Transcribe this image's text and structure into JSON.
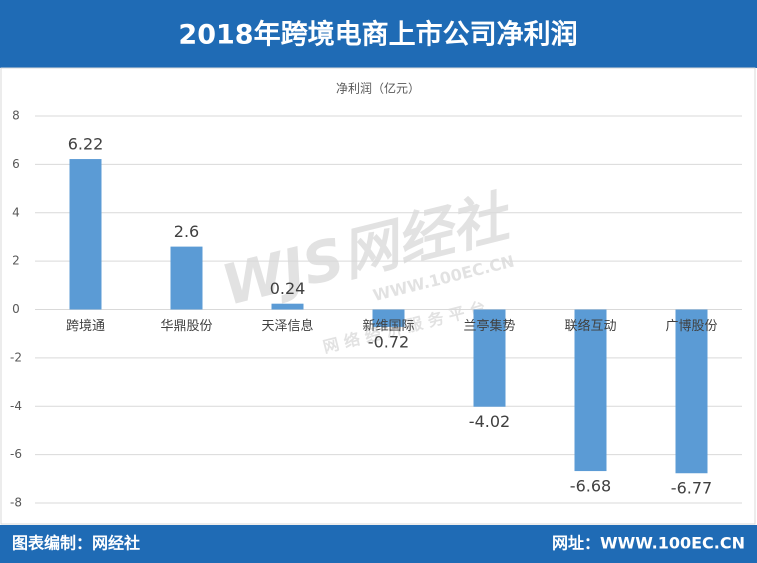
{
  "header": {
    "title": "2018年跨境电商上市公司净利润"
  },
  "chart_data": {
    "type": "bar",
    "title": "净利润（亿元）",
    "categories": [
      "跨境通",
      "华鼎股份",
      "天泽信息",
      "新维国际",
      "兰亭集势",
      "联络互动",
      "广博股份"
    ],
    "values": [
      6.22,
      2.6,
      0.24,
      -0.72,
      -4.02,
      -6.68,
      -6.77
    ],
    "color": "#5b9bd5",
    "ylim": [
      -8,
      8
    ],
    "yticks": [
      -8,
      -6,
      -4,
      -2,
      0,
      2,
      4,
      6,
      8
    ],
    "grid": true
  },
  "watermark": {
    "logo": "WJS网经社",
    "url": "WWW.100EC.CN",
    "slogan": "网 络 经 济 服 务 平 台"
  },
  "footer": {
    "left": "图表编制：网经社",
    "right": "网址：WWW.100EC.CN"
  }
}
